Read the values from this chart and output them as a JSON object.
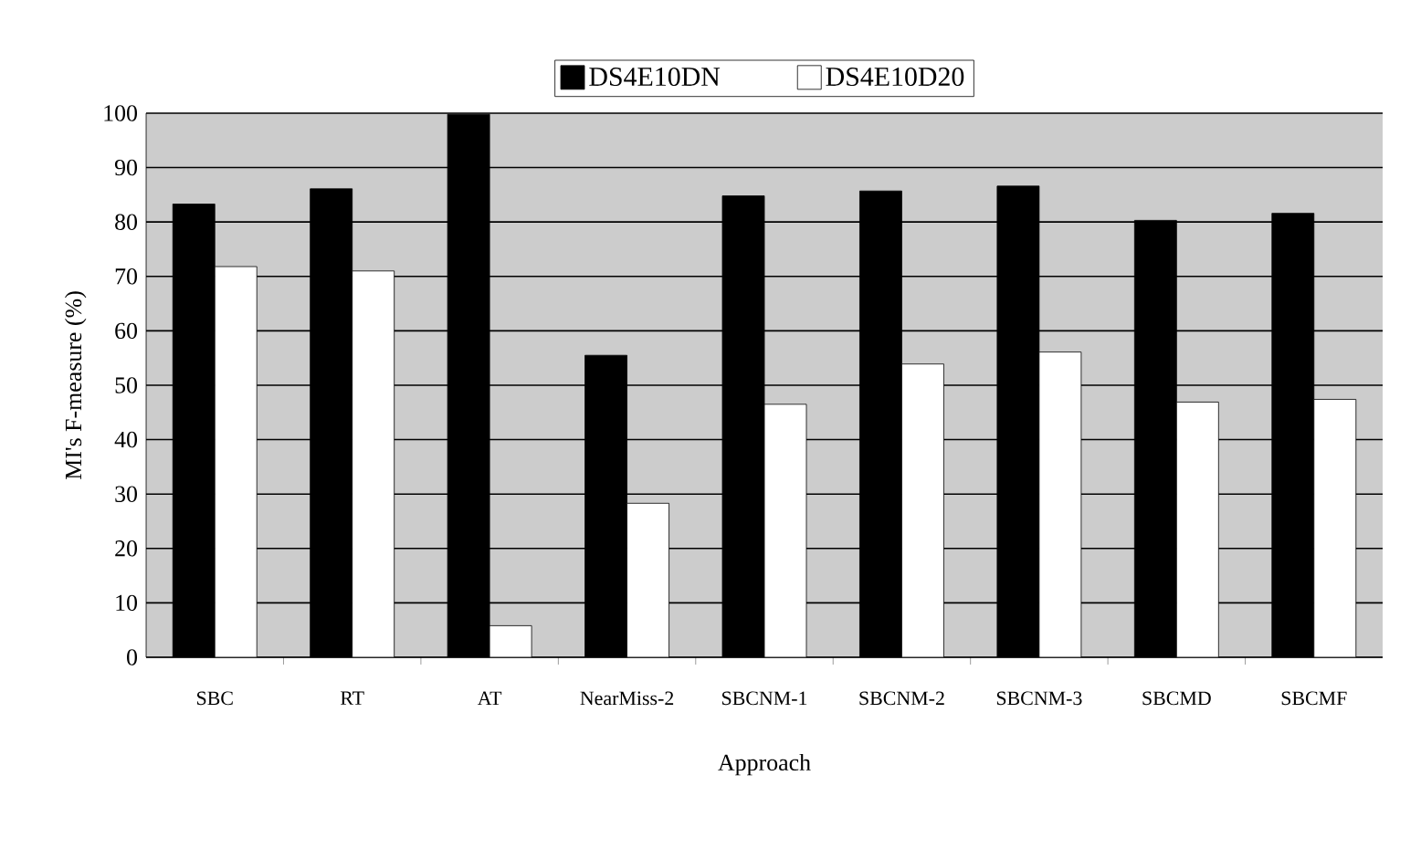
{
  "chart_data": {
    "type": "bar",
    "xlabel": "Approach",
    "ylabel": "MI's F-measure (%)",
    "categories": [
      "SBC",
      "RT",
      "AT",
      "NearMiss-2",
      "SBCNM-1",
      "SBCNM-2",
      "SBCNM-3",
      "SBCMD",
      "SBCMF"
    ],
    "series": [
      {
        "name": "DS4E10DN",
        "color": "#000000",
        "values": [
          83.3,
          86.1,
          99.8,
          55.5,
          84.8,
          85.7,
          86.6,
          80.3,
          81.6
        ]
      },
      {
        "name": "DS4E10D20",
        "color": "#ffffff",
        "values": [
          71.8,
          71.0,
          5.8,
          28.3,
          46.5,
          53.9,
          56.1,
          46.9,
          47.4
        ]
      }
    ],
    "ylim": [
      0,
      100
    ],
    "yticks": [
      0,
      10,
      20,
      30,
      40,
      50,
      60,
      70,
      80,
      90,
      100
    ],
    "grid": "y",
    "legend": "top"
  }
}
